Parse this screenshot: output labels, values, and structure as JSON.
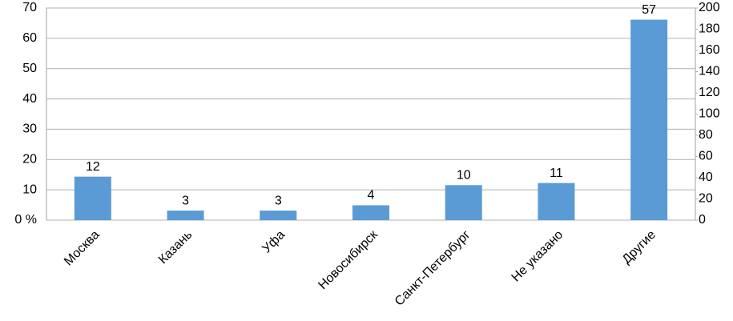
{
  "chart_data": {
    "type": "bar",
    "categories": [
      "Москва",
      "Казань",
      "Уфа",
      "Новосибирск",
      "Санкт-Петербург",
      "Не указано",
      "Другие"
    ],
    "values": [
      41,
      9,
      9,
      14,
      33,
      35,
      189
    ],
    "axis": "y2",
    "data_labels": [
      12,
      3,
      3,
      4,
      10,
      11,
      57
    ],
    "color": "#5b9bd5",
    "ylim": [
      0,
      70
    ],
    "yticks": [
      {
        "value": 0,
        "label": "0 %"
      },
      10,
      20,
      30,
      40,
      50,
      60,
      70
    ],
    "y2lim": [
      0,
      200
    ],
    "y2ticks": [
      0,
      20,
      40,
      60,
      80,
      100,
      120,
      140,
      160,
      180,
      200
    ],
    "grid": true
  }
}
